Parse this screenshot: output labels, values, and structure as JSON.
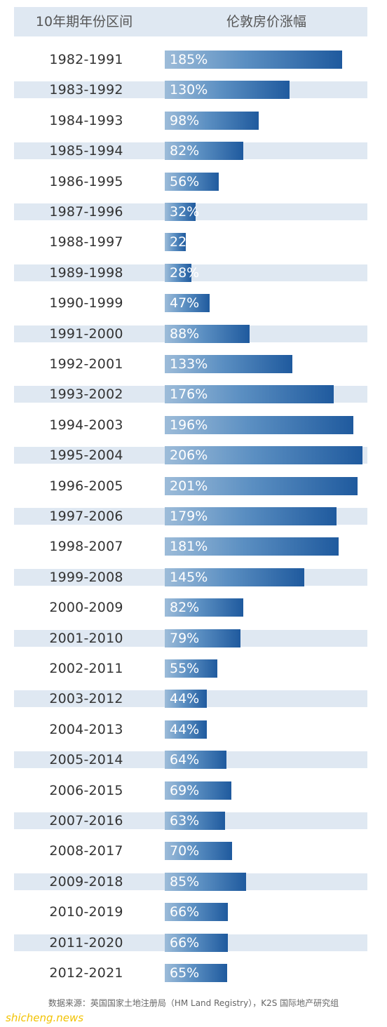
{
  "chart_data": {
    "type": "bar",
    "orientation": "horizontal",
    "columns": [
      "10年期年份区间",
      "伦敦房价涨幅"
    ],
    "categories": [
      "1982-1991",
      "1983-1992",
      "1984-1993",
      "1985-1994",
      "1986-1995",
      "1987-1996",
      "1988-1997",
      "1989-1998",
      "1990-1999",
      "1991-2000",
      "1992-2001",
      "1993-2002",
      "1994-2003",
      "1995-2004",
      "1996-2005",
      "1997-2006",
      "1998-2007",
      "1999-2008",
      "2000-2009",
      "2001-2010",
      "2002-2011",
      "2003-2012",
      "2004-2013",
      "2005-2014",
      "2006-2015",
      "2007-2016",
      "2008-2017",
      "2009-2018",
      "2010-2019",
      "2011-2020",
      "2012-2021"
    ],
    "values": [
      185,
      130,
      98,
      82,
      56,
      32,
      22,
      28,
      47,
      88,
      133,
      176,
      196,
      206,
      201,
      179,
      181,
      145,
      82,
      79,
      55,
      44,
      44,
      64,
      69,
      63,
      70,
      85,
      66,
      66,
      65
    ],
    "value_suffix": "%",
    "xlim": [
      0,
      210
    ],
    "legend": "none",
    "bar_color": "#1f5a9e",
    "stripe_color": "#dfe8f2"
  },
  "source": "数据来源：英国国家土地注册局（HM Land Registry），K2S 国际地产研究组",
  "watermark": "shicheng.news"
}
